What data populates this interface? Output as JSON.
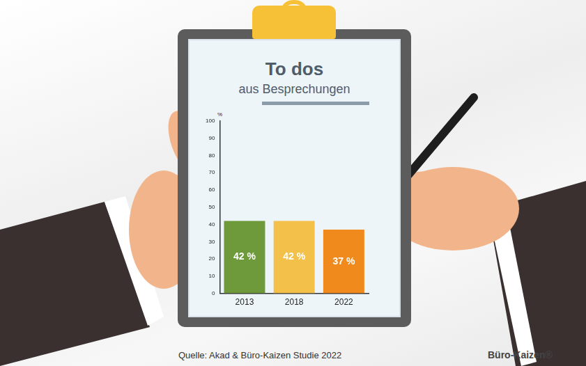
{
  "chart_data": {
    "type": "bar",
    "title": "To dos",
    "subtitle": "aus Besprechungen",
    "categories": [
      "2013",
      "2018",
      "2022"
    ],
    "values": [
      42,
      42,
      37
    ],
    "value_labels": [
      "42 %",
      "42 %",
      "37 %"
    ],
    "colors": [
      "#6f9a3c",
      "#f3c04a",
      "#f08a1c"
    ],
    "ylim": [
      0,
      100
    ],
    "yticks": [
      0,
      10,
      20,
      30,
      40,
      50,
      60,
      70,
      80,
      90,
      100
    ],
    "y_label": "%",
    "grid": false,
    "data_labels": true
  },
  "source": "Quelle: Akad & Büro-Kaizen Studie 2022",
  "brand": "Büro-Kaizen®"
}
